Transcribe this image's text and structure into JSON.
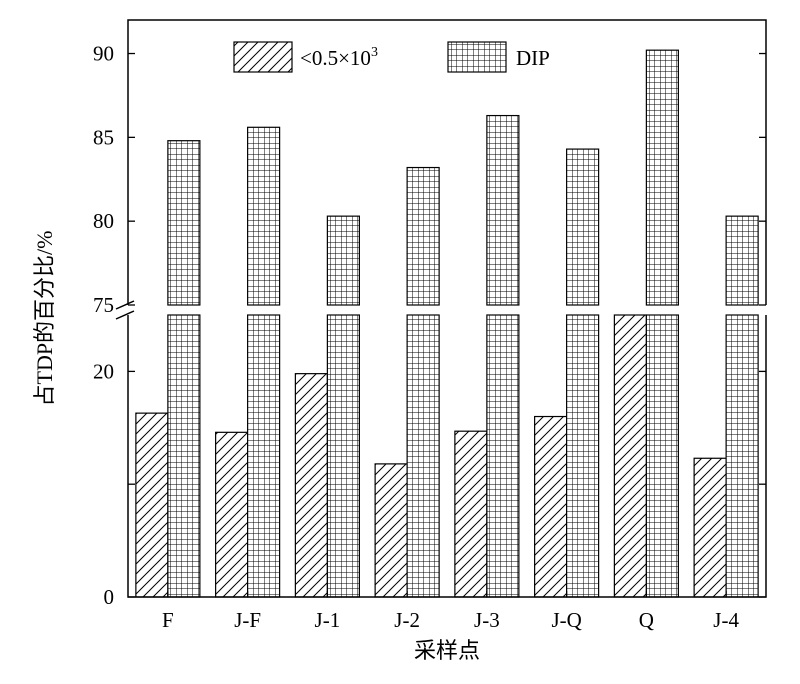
{
  "chart_data": {
    "type": "bar",
    "title": "",
    "xlabel": "采样点",
    "ylabel": "占TDP的百分比/%",
    "categories": [
      "F",
      "J-F",
      "J-1",
      "J-2",
      "J-3",
      "J-Q",
      "Q",
      "J-4"
    ],
    "series": [
      {
        "name_parts": [
          "<0.5×10",
          "3"
        ],
        "pattern": "diagonal-hatch",
        "values": [
          16.3,
          14.6,
          19.8,
          11.8,
          14.7,
          16.0,
          75.0,
          12.3
        ]
      },
      {
        "name": "DIP",
        "pattern": "grid-hatch",
        "values": [
          84.8,
          85.6,
          80.3,
          83.2,
          86.3,
          84.3,
          90.2,
          80.3
        ]
      }
    ],
    "y_axis": {
      "broken": true,
      "lower_segment": {
        "range": [
          0,
          25
        ],
        "tick_labels": [
          "0",
          "20"
        ]
      },
      "upper_segment": {
        "range": [
          75,
          92
        ],
        "tick_labels": [
          "75",
          "80",
          "85",
          "90"
        ]
      }
    },
    "legend_position": "top",
    "grid": false,
    "colors": {
      "ink": "#000000",
      "background": "#ffffff"
    }
  }
}
